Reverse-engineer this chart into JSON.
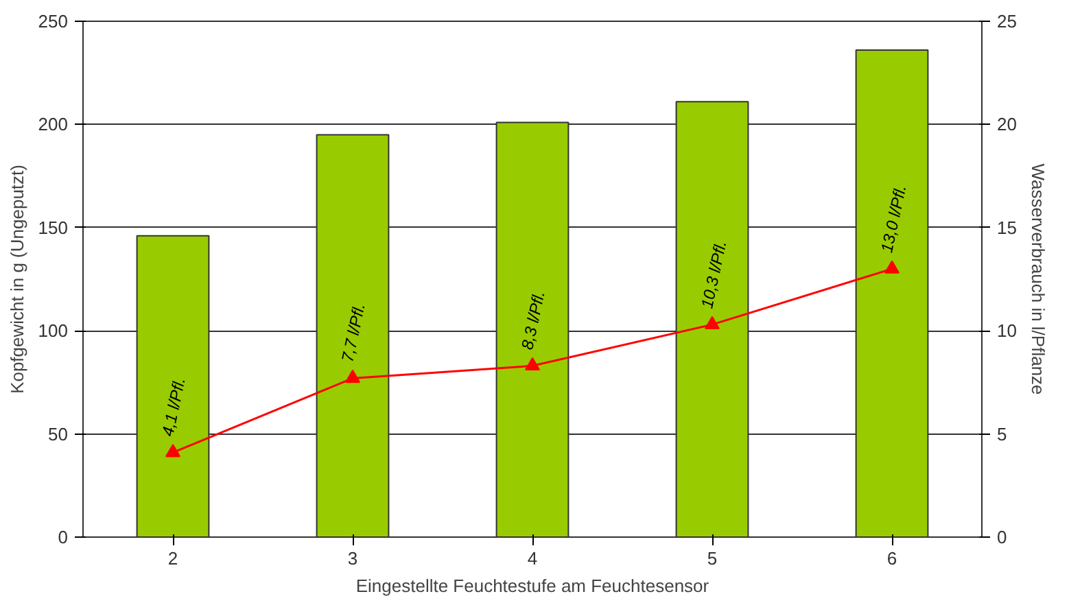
{
  "chart_data": {
    "type": "bar",
    "xlabel": "Eingestellte Feuchtestufe am Feuchtesensor",
    "ylabel": "Kopfgewicht in g (Ungeputzt)",
    "y2label": "Wasserverbrauch in l/Pflanze",
    "categories": [
      "2",
      "3",
      "4",
      "5",
      "6"
    ],
    "series": [
      {
        "color": "#99cc00",
        "values": [
          146,
          195,
          201,
          211,
          236
        ]
      },
      {
        "type": "line",
        "axis": "y2",
        "color": "#ff0000",
        "marker": "triangle",
        "values": [
          4.1,
          7.7,
          8.3,
          10.3,
          13.0
        ],
        "value_labels": [
          "4,1 l/Pfl.",
          "7,7 l/Pfl.",
          "8,3 l/Pfl.",
          "10,3 l/Pfl.",
          "13,0 l/Pfl."
        ]
      }
    ],
    "ylim": [
      0,
      250
    ],
    "yticks": [
      0,
      50,
      100,
      150,
      200,
      250
    ],
    "y2lim": [
      0,
      25
    ],
    "y2ticks": [
      0,
      5,
      10,
      15,
      20,
      25
    ],
    "grid": "y"
  }
}
